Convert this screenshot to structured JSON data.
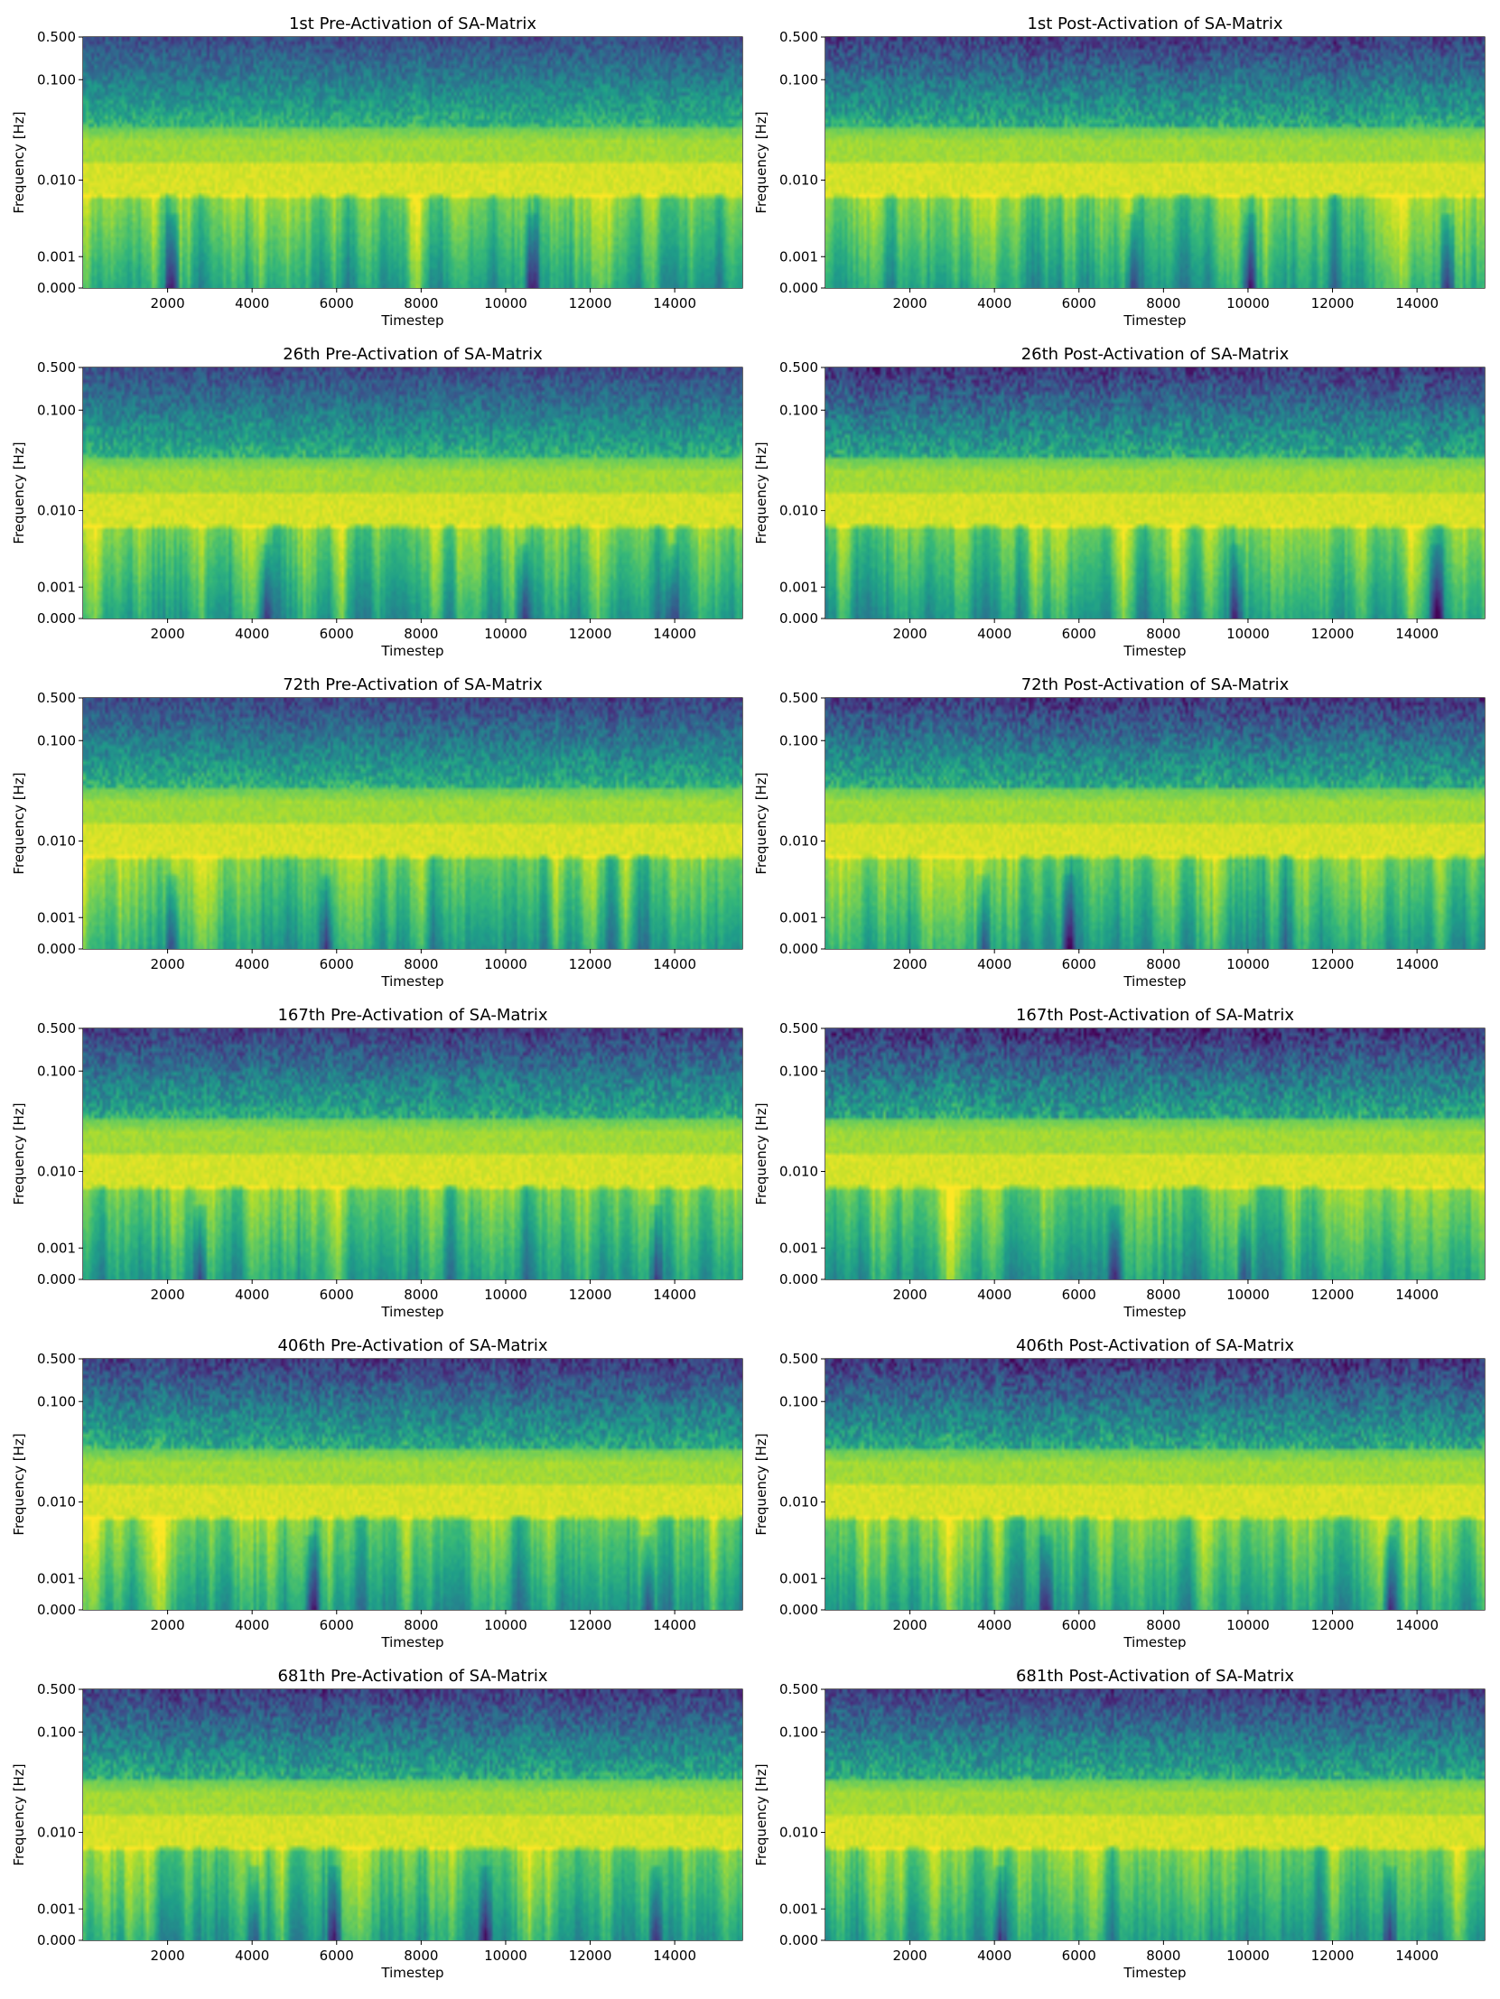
{
  "chart_data": [
    {
      "type": "heatmap",
      "title": "1st Pre-Activation of SA-Matrix",
      "xlabel": "Timestep",
      "ylabel": "Frequency [Hz]",
      "xticks": [
        "2000",
        "4000",
        "6000",
        "8000",
        "10000",
        "12000",
        "14000"
      ],
      "yticks": [
        "0.000",
        "0.001",
        "0.010",
        "0.100",
        "0.500"
      ],
      "xlim": [
        0,
        15600
      ],
      "ylim": [
        0.0,
        0.5
      ],
      "seed": 11,
      "darkness": 0.35,
      "dark_spots": [
        2100,
        10600
      ]
    },
    {
      "type": "heatmap",
      "title": "1st Post-Activation of SA-Matrix",
      "xlabel": "Timestep",
      "ylabel": "Frequency [Hz]",
      "xticks": [
        "2000",
        "4000",
        "6000",
        "8000",
        "10000",
        "12000",
        "14000"
      ],
      "yticks": [
        "0.000",
        "0.001",
        "0.010",
        "0.100",
        "0.500"
      ],
      "xlim": [
        0,
        15600
      ],
      "ylim": [
        0.0,
        0.5
      ],
      "seed": 23,
      "darkness": 0.55,
      "dark_spots": [
        7200,
        10000,
        14700
      ]
    },
    {
      "type": "heatmap",
      "title": "26th Pre-Activation of SA-Matrix",
      "xlabel": "Timestep",
      "ylabel": "Frequency [Hz]",
      "xticks": [
        "2000",
        "4000",
        "6000",
        "8000",
        "10000",
        "12000",
        "14000"
      ],
      "yticks": [
        "0.000",
        "0.001",
        "0.010",
        "0.100",
        "0.500"
      ],
      "xlim": [
        0,
        15600
      ],
      "ylim": [
        0.0,
        0.5
      ],
      "seed": 37,
      "darkness": 0.4,
      "dark_spots": [
        4300,
        10400,
        13900
      ]
    },
    {
      "type": "heatmap",
      "title": "26th Post-Activation of SA-Matrix",
      "xlabel": "Timestep",
      "ylabel": "Frequency [Hz]",
      "xticks": [
        "2000",
        "4000",
        "6000",
        "8000",
        "10000",
        "12000",
        "14000"
      ],
      "yticks": [
        "0.000",
        "0.001",
        "0.010",
        "0.100",
        "0.500"
      ],
      "xlim": [
        0,
        15600
      ],
      "ylim": [
        0.0,
        0.5
      ],
      "seed": 41,
      "darkness": 0.6,
      "dark_spots": [
        9700,
        14400
      ]
    },
    {
      "type": "heatmap",
      "title": "72th Pre-Activation of SA-Matrix",
      "xlabel": "Timestep",
      "ylabel": "Frequency [Hz]",
      "xticks": [
        "2000",
        "4000",
        "6000",
        "8000",
        "10000",
        "12000",
        "14000"
      ],
      "yticks": [
        "0.000",
        "0.001",
        "0.010",
        "0.100",
        "0.500"
      ],
      "xlim": [
        0,
        15600
      ],
      "ylim": [
        0.0,
        0.5
      ],
      "seed": 53,
      "darkness": 0.45,
      "dark_spots": [
        2100,
        5700
      ]
    },
    {
      "type": "heatmap",
      "title": "72th Post-Activation of SA-Matrix",
      "xlabel": "Timestep",
      "ylabel": "Frequency [Hz]",
      "xticks": [
        "2000",
        "4000",
        "6000",
        "8000",
        "10000",
        "12000",
        "14000"
      ],
      "yticks": [
        "0.000",
        "0.001",
        "0.010",
        "0.100",
        "0.500"
      ],
      "xlim": [
        0,
        15600
      ],
      "ylim": [
        0.0,
        0.5
      ],
      "seed": 67,
      "darkness": 0.6,
      "dark_spots": [
        3700,
        5700
      ]
    },
    {
      "type": "heatmap",
      "title": "167th Pre-Activation of SA-Matrix",
      "xlabel": "Timestep",
      "ylabel": "Frequency [Hz]",
      "xticks": [
        "2000",
        "4000",
        "6000",
        "8000",
        "10000",
        "12000",
        "14000"
      ],
      "yticks": [
        "0.000",
        "0.001",
        "0.010",
        "0.100",
        "0.500"
      ],
      "xlim": [
        0,
        15600
      ],
      "ylim": [
        0.0,
        0.5
      ],
      "seed": 71,
      "darkness": 0.55,
      "dark_spots": [
        2700,
        13500
      ]
    },
    {
      "type": "heatmap",
      "title": "167th Post-Activation of SA-Matrix",
      "xlabel": "Timestep",
      "ylabel": "Frequency [Hz]",
      "xticks": [
        "2000",
        "4000",
        "6000",
        "8000",
        "10000",
        "12000",
        "14000"
      ],
      "yticks": [
        "0.000",
        "0.001",
        "0.010",
        "0.100",
        "0.500"
      ],
      "xlim": [
        0,
        15600
      ],
      "ylim": [
        0.0,
        0.5
      ],
      "seed": 83,
      "darkness": 0.7,
      "dark_spots": [
        6800,
        9900
      ]
    },
    {
      "type": "heatmap",
      "title": "406th Pre-Activation of SA-Matrix",
      "xlabel": "Timestep",
      "ylabel": "Frequency [Hz]",
      "xticks": [
        "2000",
        "4000",
        "6000",
        "8000",
        "10000",
        "12000",
        "14000"
      ],
      "yticks": [
        "0.000",
        "0.001",
        "0.010",
        "0.100",
        "0.500"
      ],
      "xlim": [
        0,
        15600
      ],
      "ylim": [
        0.0,
        0.5
      ],
      "seed": 97,
      "darkness": 0.55,
      "dark_spots": [
        5400,
        13300
      ]
    },
    {
      "type": "heatmap",
      "title": "406th Post-Activation of SA-Matrix",
      "xlabel": "Timestep",
      "ylabel": "Frequency [Hz]",
      "xticks": [
        "2000",
        "4000",
        "6000",
        "8000",
        "10000",
        "12000",
        "14000"
      ],
      "yticks": [
        "0.000",
        "0.001",
        "0.010",
        "0.100",
        "0.500"
      ],
      "xlim": [
        0,
        15600
      ],
      "ylim": [
        0.0,
        0.5
      ],
      "seed": 101,
      "darkness": 0.65,
      "dark_spots": [
        5200,
        13300
      ]
    },
    {
      "type": "heatmap",
      "title": "681th Pre-Activation of SA-Matrix",
      "xlabel": "Timestep",
      "ylabel": "Frequency [Hz]",
      "xticks": [
        "2000",
        "4000",
        "6000",
        "8000",
        "10000",
        "12000",
        "14000"
      ],
      "yticks": [
        "0.000",
        "0.001",
        "0.010",
        "0.100",
        "0.500"
      ],
      "xlim": [
        0,
        15600
      ],
      "ylim": [
        0.0,
        0.5
      ],
      "seed": 113,
      "darkness": 0.55,
      "dark_spots": [
        4000,
        5900,
        9500,
        13500
      ]
    },
    {
      "type": "heatmap",
      "title": "681th Post-Activation of SA-Matrix",
      "xlabel": "Timestep",
      "ylabel": "Frequency [Hz]",
      "xticks": [
        "2000",
        "4000",
        "6000",
        "8000",
        "10000",
        "12000",
        "14000"
      ],
      "yticks": [
        "0.000",
        "0.001",
        "0.010",
        "0.100",
        "0.500"
      ],
      "xlim": [
        0,
        15600
      ],
      "ylim": [
        0.0,
        0.5
      ],
      "seed": 127,
      "darkness": 0.55,
      "dark_spots": [
        4100,
        13300
      ]
    }
  ]
}
